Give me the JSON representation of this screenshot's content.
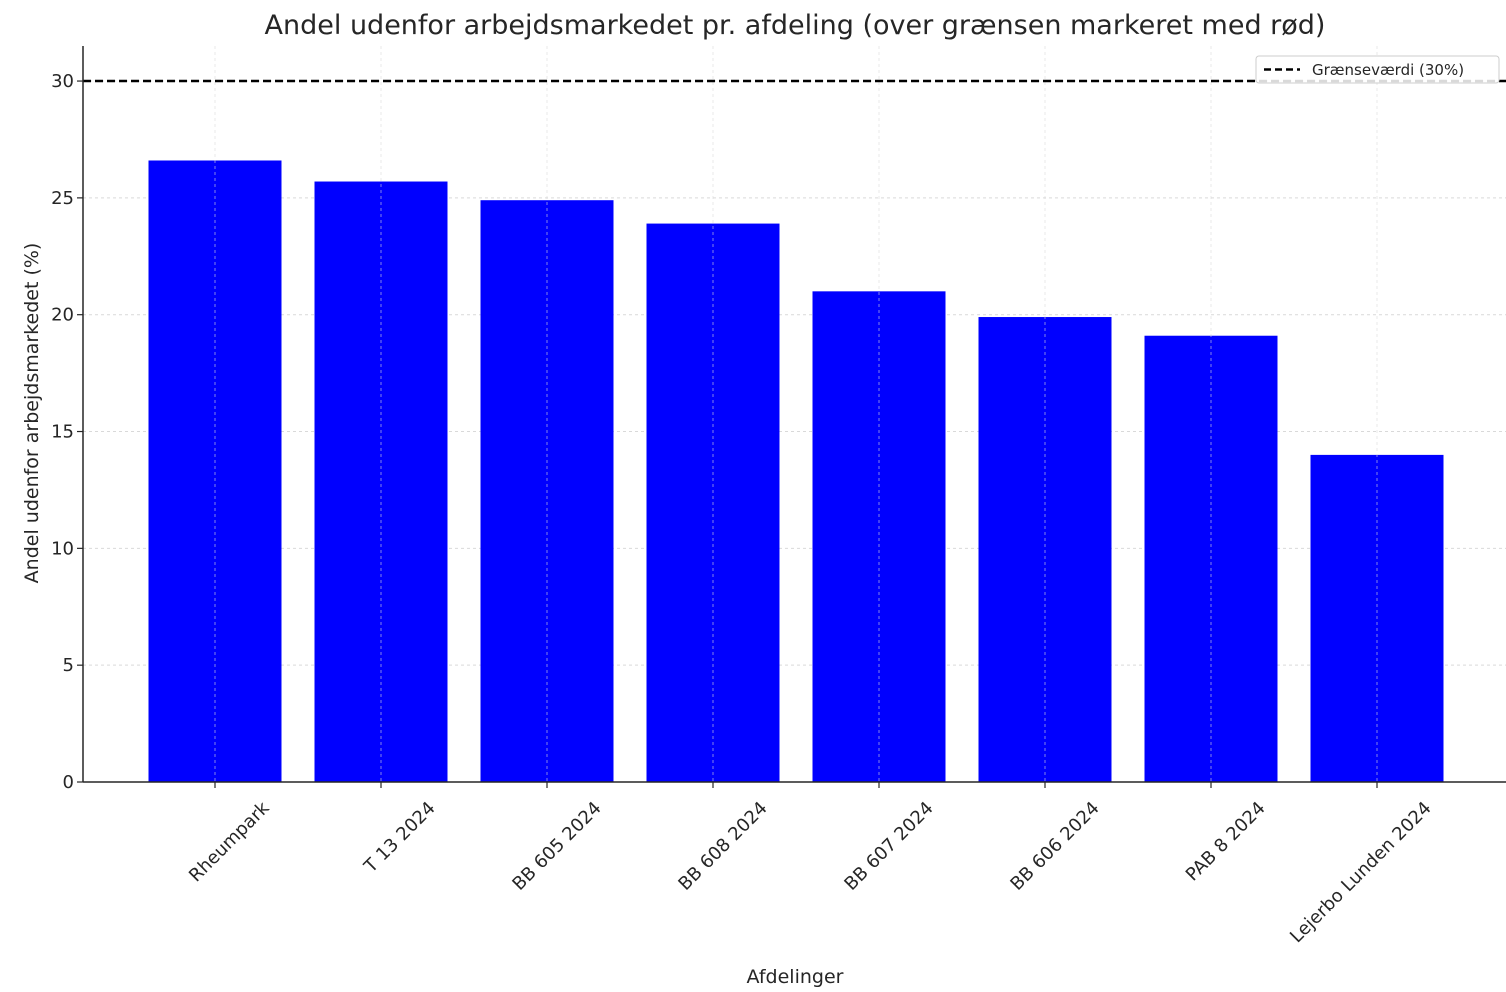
{
  "chart_data": {
    "type": "bar",
    "title": "Andel udenfor arbejdsmarkedet pr. afdeling (over grænsen markeret med rød)",
    "xlabel": "Afdelinger",
    "ylabel": "Andel udenfor arbejdsmarkedet (%)",
    "categories": [
      "Rheumpark",
      "T 13 2024",
      "BB 605 2024",
      "BB 608 2024",
      "BB 607 2024",
      "BB 606 2024",
      "PAB 8 2024",
      "Lejerbo Lunden 2024"
    ],
    "values": [
      26.6,
      25.7,
      24.9,
      23.9,
      21.0,
      19.9,
      19.1,
      14.0
    ],
    "ylim": [
      0,
      31.5
    ],
    "yticks": [
      0,
      5,
      10,
      15,
      20,
      25,
      30
    ],
    "grid": true,
    "bar_color": "#0000ff",
    "threshold": {
      "value": 30,
      "label": "Grænseværdi (30%)",
      "style": "dashed",
      "color": "#000000"
    },
    "legend_position": "top-right"
  }
}
